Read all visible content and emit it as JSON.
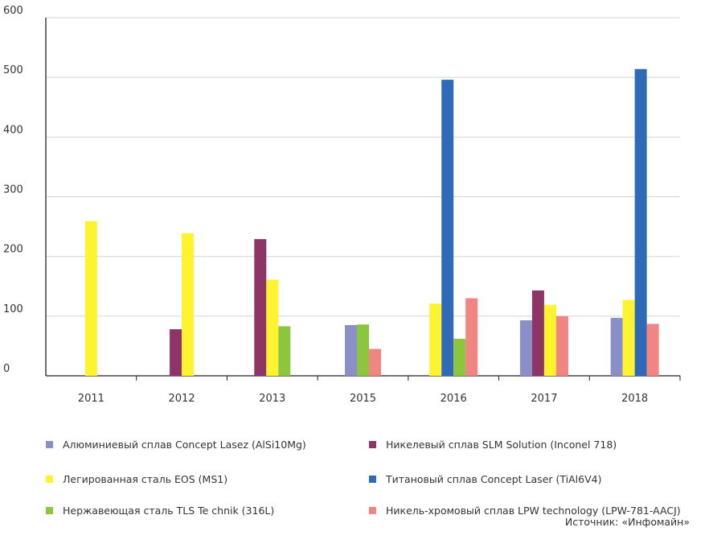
{
  "chart_data": {
    "type": "bar",
    "categories": [
      "2011",
      "2012",
      "2013",
      "2015",
      "2016",
      "2017",
      "2018"
    ],
    "ylim": [
      0,
      600
    ],
    "yticks": [
      0,
      100,
      200,
      300,
      400,
      500,
      600
    ],
    "grid": true,
    "legend_placement": "bottom",
    "series": [
      {
        "name": "Алюминиевый сплав Concept Lasez (AlSi10Mg)",
        "color": "#8b8fc8",
        "values": [
          null,
          null,
          null,
          85,
          null,
          93,
          97
        ]
      },
      {
        "name": "Никелевый сплав SLM Solution (Inconel 718)",
        "color": "#8e3466",
        "values": [
          null,
          78,
          229,
          null,
          null,
          143,
          null
        ]
      },
      {
        "name": "Легированная сталь EOS (MS1)",
        "color": "#fff22e",
        "values": [
          259,
          239,
          161,
          null,
          121,
          119,
          127
        ]
      },
      {
        "name": "Титановый сплав Concept Laser (TiAl6V4)",
        "color": "#2f6ab8",
        "values": [
          null,
          null,
          null,
          null,
          496,
          null,
          514
        ]
      },
      {
        "name": "Нержавеющая сталь TLS Te chnik (316L)",
        "color": "#8cc63f",
        "values": [
          null,
          null,
          83,
          86,
          62,
          null,
          null
        ]
      },
      {
        "name": "Никель-хромовый сплав LPW technology (LPW-781-AACJ)",
        "color": "#f08582",
        "values": [
          null,
          null,
          null,
          45,
          130,
          100,
          87
        ]
      }
    ]
  },
  "source": "Источник: «Инфомайн»"
}
